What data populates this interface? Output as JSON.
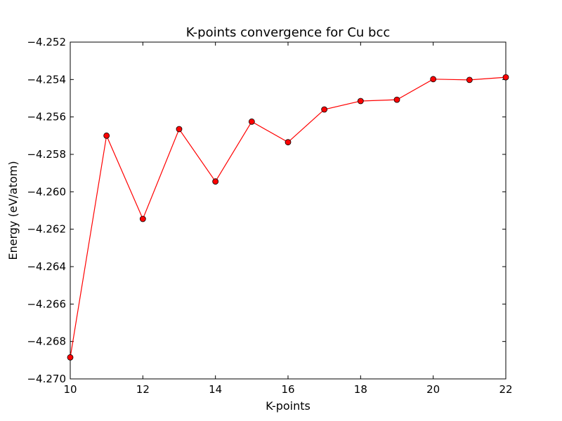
{
  "chart_data": {
    "type": "line",
    "title": "K-points convergence for Cu bcc",
    "xlabel": "K-points",
    "ylabel": "Energy (eV/atom)",
    "xlim": [
      10,
      22
    ],
    "ylim": [
      -4.27,
      -4.252
    ],
    "x_ticks": [
      10,
      12,
      14,
      16,
      18,
      20,
      22
    ],
    "x_tick_labels": [
      "10",
      "12",
      "14",
      "16",
      "18",
      "20",
      "22"
    ],
    "y_ticks": [
      -4.27,
      -4.268,
      -4.266,
      -4.264,
      -4.262,
      -4.26,
      -4.258,
      -4.256,
      -4.254,
      -4.252
    ],
    "y_tick_labels": [
      "−4.270",
      "−4.268",
      "−4.266",
      "−4.264",
      "−4.262",
      "−4.260",
      "−4.258",
      "−4.256",
      "−4.254",
      "−4.252"
    ],
    "grid": false,
    "series": [
      {
        "x": [
          10,
          11,
          12,
          13,
          14,
          15,
          16,
          17,
          18,
          19,
          20,
          21,
          22
        ],
        "y": [
          -4.26885,
          -4.257,
          -4.26145,
          -4.25665,
          -4.25945,
          -4.25625,
          -4.25735,
          -4.2556,
          -4.25515,
          -4.25508,
          -4.25398,
          -4.25402,
          -4.25388
        ],
        "line_color": "#ff0000",
        "marker_color": "#ff0000",
        "marker": "circle"
      }
    ]
  }
}
